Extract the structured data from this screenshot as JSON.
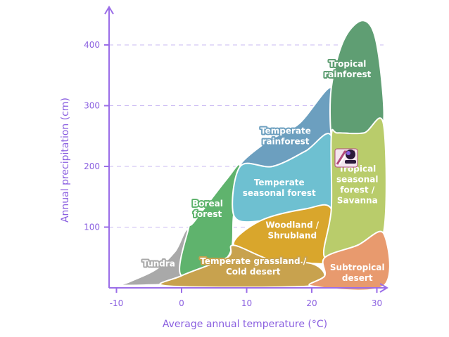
{
  "chart_data": {
    "type": "area",
    "title": "",
    "xlabel": "Average annual temperature (°C)",
    "ylabel": "Annual precipitation (cm)",
    "xlim": [
      -12,
      32
    ],
    "ylim": [
      0,
      440
    ],
    "x_ticks": [
      -10,
      0,
      10,
      20,
      30
    ],
    "y_ticks": [
      100,
      200,
      300,
      400
    ],
    "grid": "horizontal dashed",
    "regions": [
      {
        "name": "Tundra",
        "lines": [
          "Tundra"
        ],
        "color": "#a9a9a9",
        "label_pos": [
          -3.5,
          40
        ],
        "boundary": [
          [
            -8,
            10
          ],
          [
            -4,
            30
          ],
          [
            -1,
            60
          ],
          [
            1,
            95
          ],
          [
            2,
            20
          ],
          [
            0,
            8
          ],
          [
            -9,
            4
          ]
        ]
      },
      {
        "name": "Boreal forest",
        "lines": [
          "Boreal",
          "forest"
        ],
        "color": "#5fb36d",
        "label_pos": [
          4,
          130
        ],
        "boundary": [
          [
            0,
            20
          ],
          [
            1,
            95
          ],
          [
            2,
            110
          ],
          [
            7,
            180
          ],
          [
            9,
            200
          ],
          [
            8,
            120
          ],
          [
            7,
            50
          ]
        ]
      },
      {
        "name": "Temperate rainforest",
        "lines": [
          "Temperate",
          "rainforest"
        ],
        "color": "#6c9fbf",
        "label_pos": [
          16,
          250
        ],
        "boundary": [
          [
            9,
            200
          ],
          [
            13,
            240
          ],
          [
            18,
            270
          ],
          [
            23,
            330
          ],
          [
            23,
            250
          ],
          [
            19,
            225
          ],
          [
            14,
            200
          ]
        ]
      },
      {
        "name": "Temperate seasonal forest",
        "lines": [
          "Temperate",
          "seasonal forest"
        ],
        "color": "#6ec0d1",
        "label_pos": [
          15,
          165
        ],
        "boundary": [
          [
            9,
            200
          ],
          [
            14,
            200
          ],
          [
            19,
            225
          ],
          [
            23,
            250
          ],
          [
            23,
            130
          ],
          [
            19,
            130
          ],
          [
            12,
            110
          ],
          [
            8,
            120
          ]
        ]
      },
      {
        "name": "Woodland / Shrubland",
        "lines": [
          "Woodland /",
          "Shrubland"
        ],
        "color": "#d9a62c",
        "label_pos": [
          17,
          95
        ],
        "boundary": [
          [
            8,
            70
          ],
          [
            12,
            110
          ],
          [
            19,
            130
          ],
          [
            23,
            130
          ],
          [
            23,
            50
          ],
          [
            20,
            40
          ],
          [
            14,
            45
          ]
        ]
      },
      {
        "name": "Temperate grassland / Cold desert",
        "lines": [
          "Temperate grassland /",
          "Cold desert"
        ],
        "color": "#c8a24e",
        "label_pos": [
          11,
          35
        ],
        "boundary": [
          [
            -2,
            3
          ],
          [
            0,
            20
          ],
          [
            7,
            50
          ],
          [
            8,
            70
          ],
          [
            14,
            45
          ],
          [
            20,
            40
          ],
          [
            22,
            20
          ],
          [
            20,
            3
          ]
        ]
      },
      {
        "name": "Tropical rainforest",
        "lines": [
          "Tropical",
          "rainforest"
        ],
        "color": "#5f9e73",
        "label_pos": [
          25.5,
          360
        ],
        "boundary": [
          [
            23,
            250
          ],
          [
            23,
            330
          ],
          [
            25,
            410
          ],
          [
            28,
            440
          ],
          [
            30,
            400
          ],
          [
            31,
            270
          ],
          [
            28,
            255
          ],
          [
            24,
            255
          ]
        ]
      },
      {
        "name": "Tropical seasonal forest / Savanna",
        "lines": [
          "Tropical",
          "seasonal",
          "forest /",
          "Savanna"
        ],
        "color": "#b9cc6b",
        "label_pos": [
          27,
          170
        ],
        "boundary": [
          [
            22,
            50
          ],
          [
            23,
            130
          ],
          [
            23,
            250
          ],
          [
            24,
            255
          ],
          [
            28,
            255
          ],
          [
            31,
            270
          ],
          [
            31,
            90
          ],
          [
            27,
            70
          ]
        ]
      },
      {
        "name": "Subtropical desert",
        "lines": [
          "Subtropical",
          "desert"
        ],
        "color": "#e89a6e",
        "label_pos": [
          27,
          25
        ],
        "boundary": [
          [
            20,
            3
          ],
          [
            22,
            20
          ],
          [
            22,
            50
          ],
          [
            27,
            70
          ],
          [
            31,
            90
          ],
          [
            31,
            3
          ]
        ]
      }
    ]
  }
}
